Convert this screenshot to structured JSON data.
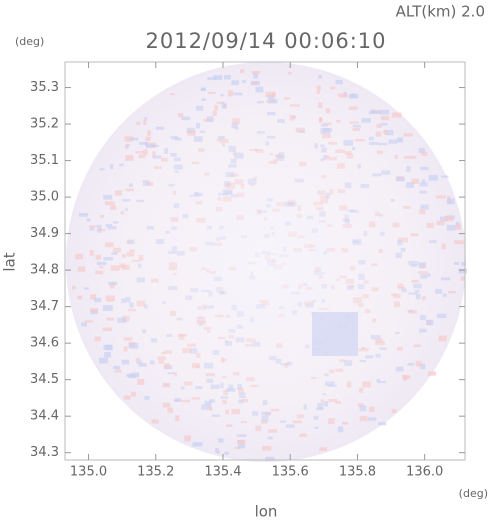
{
  "chart_data": {
    "type": "radar-map",
    "header": "ALT(km) 2.0",
    "title": "2012/09/14 00:06:10",
    "x_label": "lon",
    "y_label": "lat",
    "x_unit": "(deg)",
    "y_unit": "(deg)",
    "xlim": [
      134.93,
      136.12
    ],
    "ylim": [
      34.28,
      35.37
    ],
    "xticks": [
      {
        "value": 135,
        "label": "135.0"
      },
      135.2,
      135.4,
      135.6,
      135.8,
      {
        "value": 136,
        "label": "136.0"
      }
    ],
    "yticks": [
      34.3,
      34.4,
      34.5,
      34.6,
      34.7,
      34.8,
      34.9,
      {
        "value": 35,
        "label": "35.0"
      },
      35.1,
      35.2,
      35.3
    ]
  }
}
